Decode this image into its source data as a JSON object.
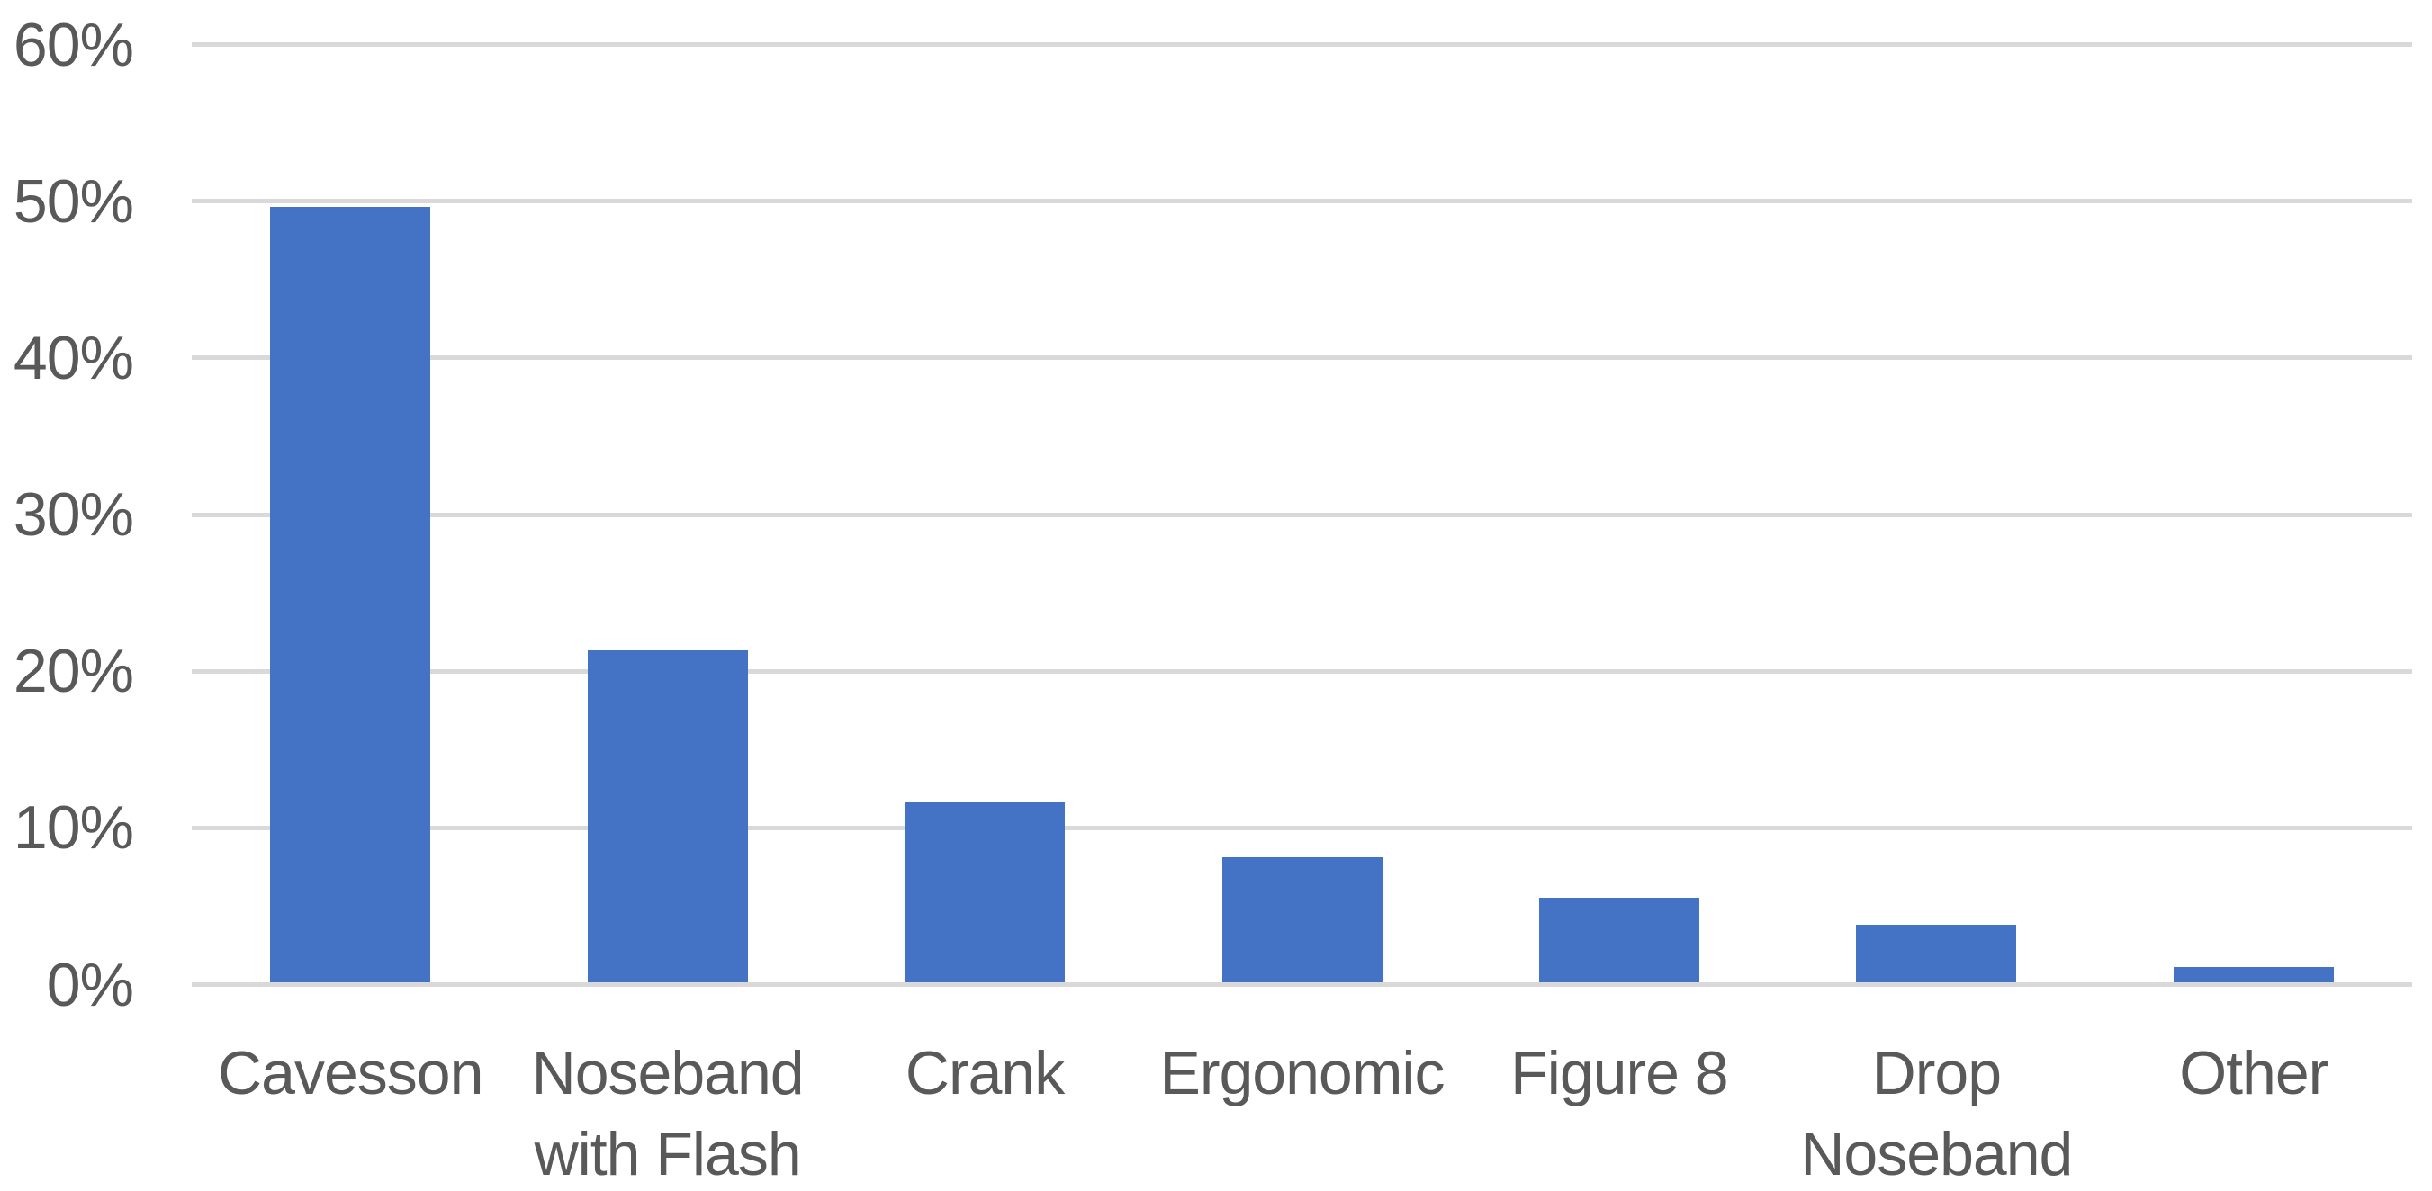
{
  "chart_data": {
    "type": "bar",
    "title": "",
    "xlabel": "",
    "ylabel": "",
    "categories": [
      "Cavesson",
      "Noseband with Flash",
      "Crank",
      "Ergonomic",
      "Figure 8",
      "Drop Noseband",
      "Other"
    ],
    "values": [
      49.5,
      21.2,
      11.5,
      8.0,
      5.4,
      3.7,
      1.0
    ],
    "value_unit": "percent",
    "ylim": [
      0,
      60
    ],
    "ytick_step": 10,
    "ytick_labels": [
      "0%",
      "10%",
      "20%",
      "30%",
      "40%",
      "50%",
      "60%"
    ],
    "grid": true,
    "legend": false,
    "colors": {
      "bar": "#4472C4",
      "gridline": "#D9D9D9",
      "text": "#595959",
      "background": "#FFFFFF"
    }
  }
}
